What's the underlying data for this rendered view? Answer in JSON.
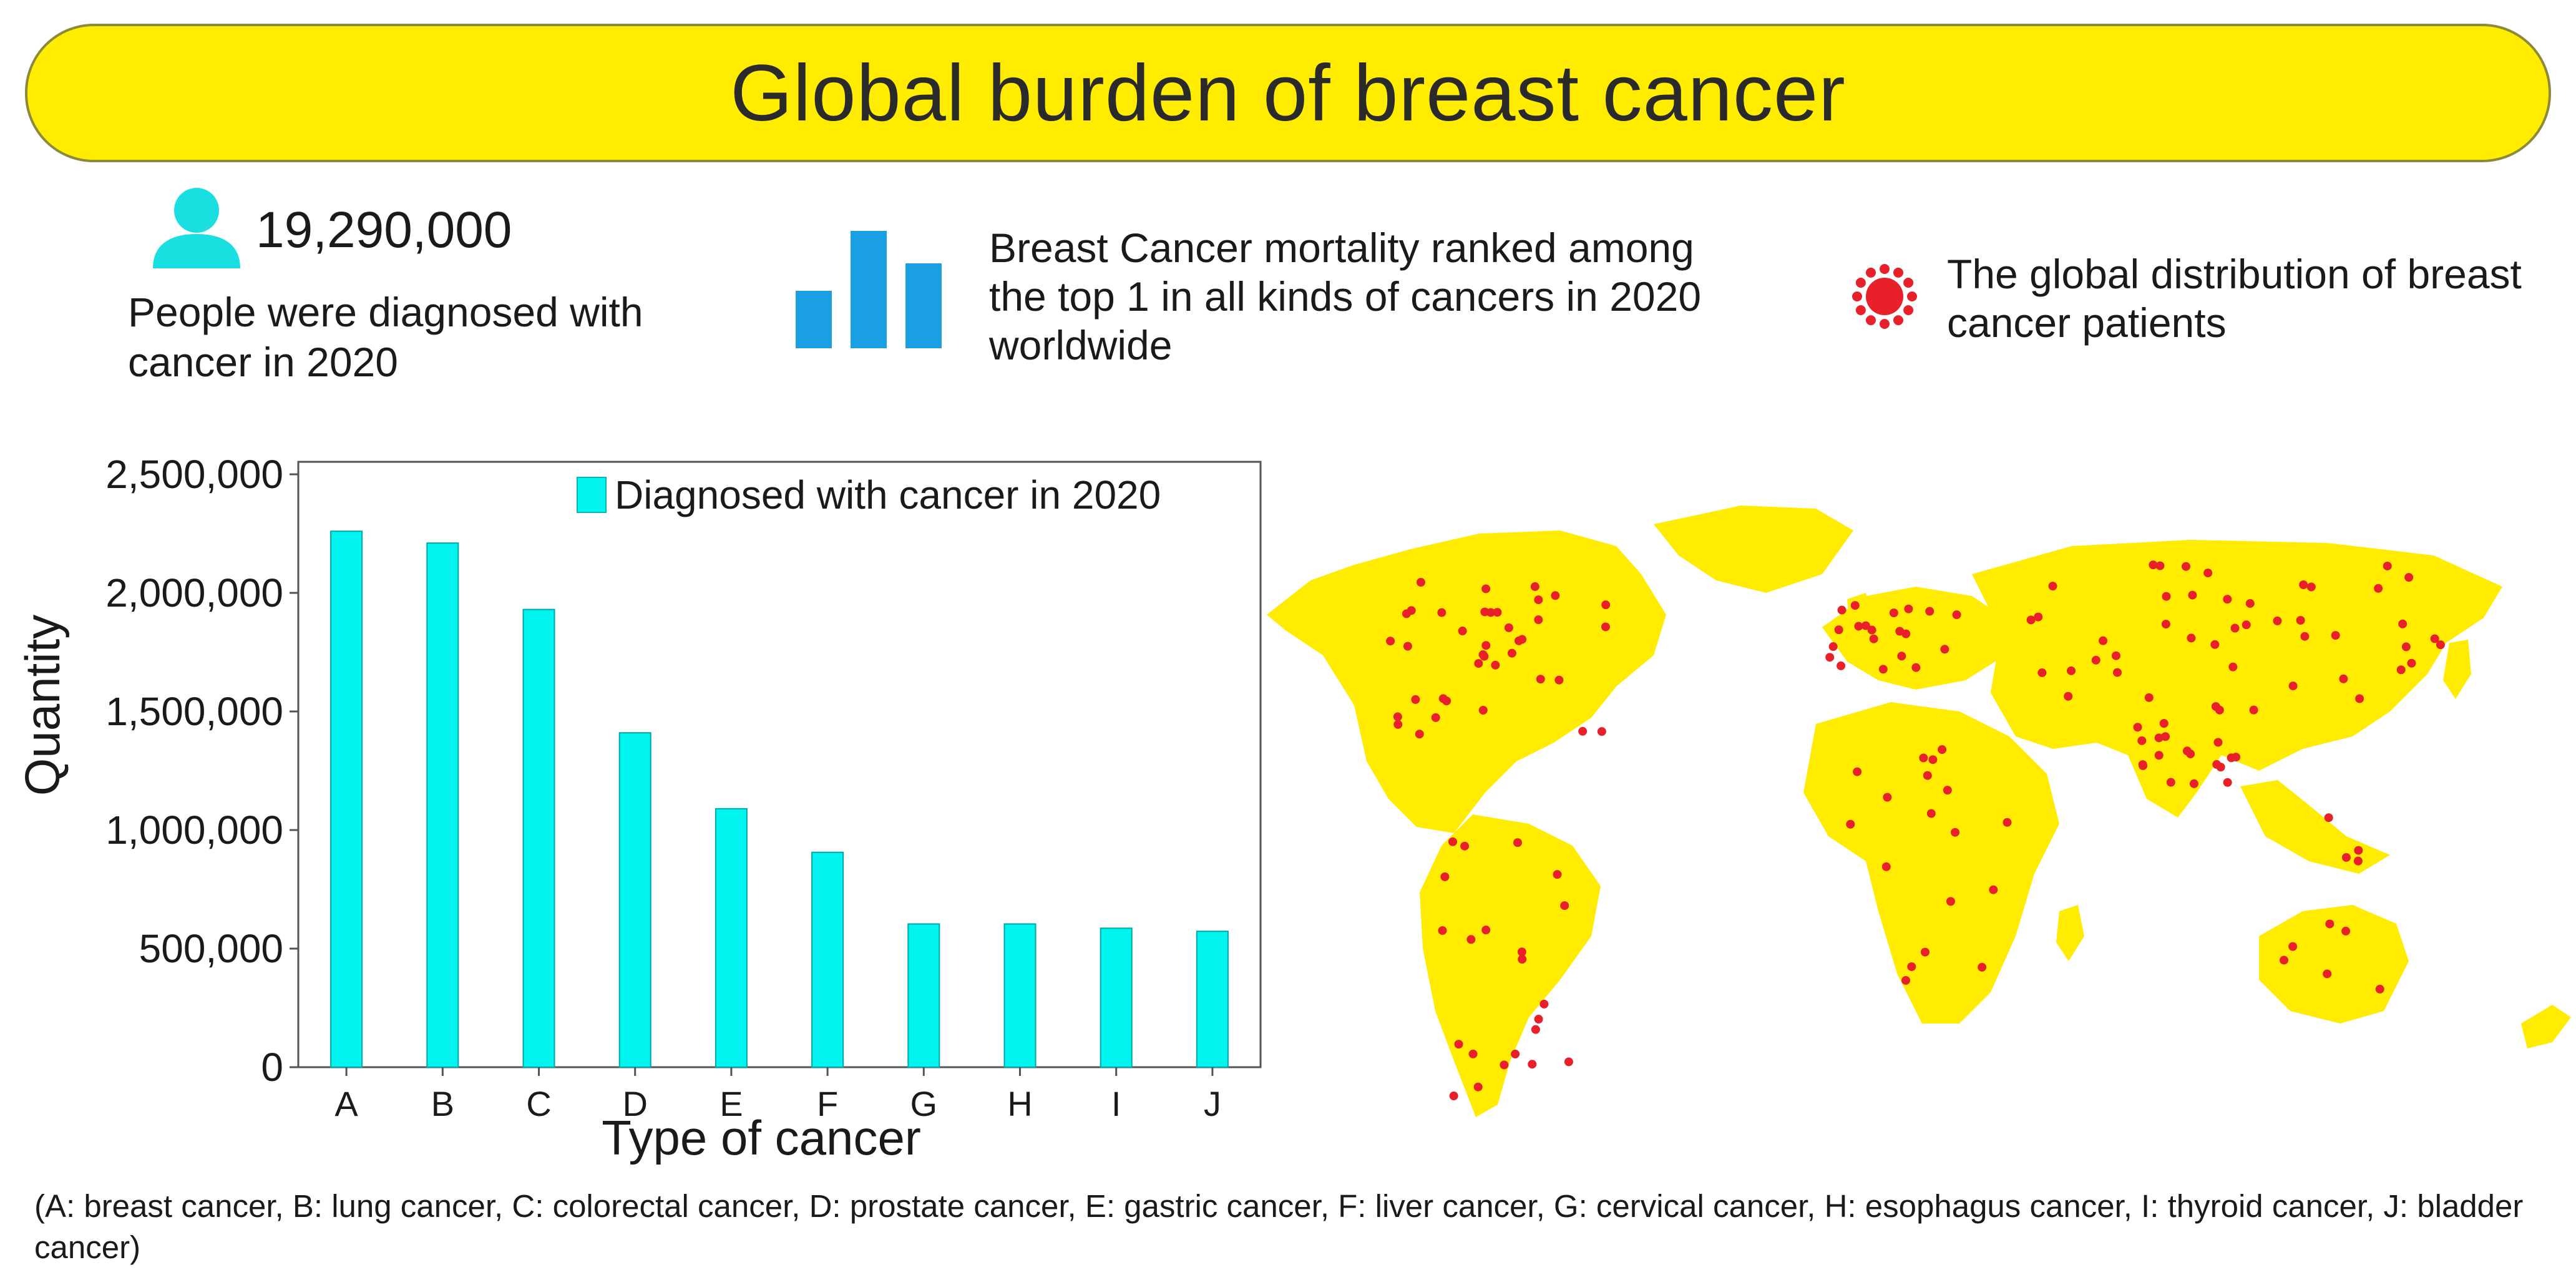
{
  "header": {
    "title": "Global burden of breast cancer"
  },
  "stats": {
    "diagnosed_number": "19,290,000",
    "diagnosed_caption": "People were diagnosed with cancer in 2020",
    "mortality_caption": "Breast Cancer mortality ranked among the top 1  in all kinds of cancers in 2020 worldwide",
    "distribution_caption": "The global distribution of breast cancer patients"
  },
  "colors": {
    "banner": "#ffec00",
    "bar": "#00f5f0",
    "icon_person": "#19dfe0",
    "icon_chart": "#1a9fe3",
    "map": "#ffec00",
    "dot": "#e8202a"
  },
  "chart_data": {
    "type": "bar",
    "title": "",
    "categories": [
      "A",
      "B",
      "C",
      "D",
      "E",
      "F",
      "G",
      "H",
      "I",
      "J"
    ],
    "values": [
      2260000,
      2210000,
      1930000,
      1410000,
      1090000,
      906000,
      604000,
      604000,
      586000,
      573000
    ],
    "series_name": "Diagnosed with cancer in 2020",
    "xlabel": "Type of cancer",
    "ylabel": "Quantity",
    "ylim": [
      0,
      2500000
    ],
    "yticks": [
      0,
      500000,
      1000000,
      1500000,
      2000000,
      2500000
    ],
    "ytick_labels": [
      "0",
      "500,000",
      "1,000,000",
      "1,500,000",
      "2,000,000",
      "2,500,000"
    ],
    "legend_position": "top-right",
    "grid": false
  },
  "footnote": "(A: breast cancer, B: lung cancer, C: colorectal cancer, D: prostate cancer, E: gastric cancer, F: liver cancer, G: cervical cancer, H: esophagus cancer, I: thyroid cancer, J: bladder cancer)"
}
